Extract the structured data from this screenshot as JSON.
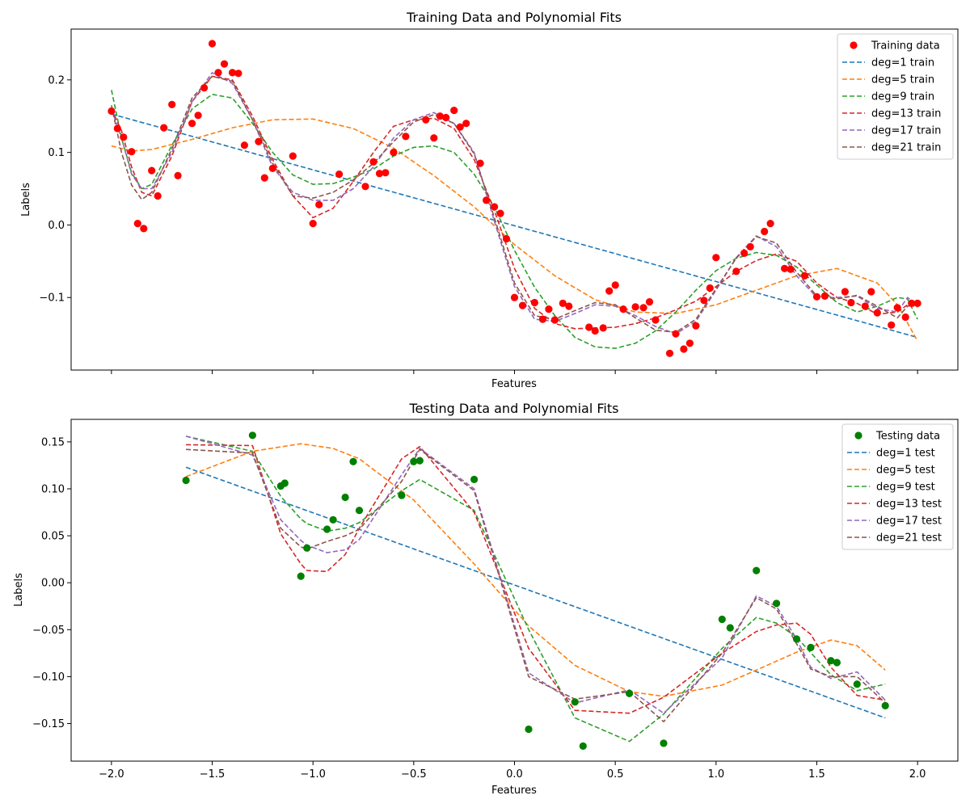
{
  "chart_data": [
    {
      "type": "scatter",
      "title": "Training Data and Polynomial Fits",
      "xlabel": "Features",
      "ylabel": "Labels",
      "xlim": [
        -2.2,
        2.2
      ],
      "ylim": [
        -0.2,
        0.27
      ],
      "x_ticks": [
        -2.0,
        -1.5,
        -1.0,
        -0.5,
        0.0,
        0.5,
        1.0,
        1.5,
        2.0
      ],
      "x_tick_labels_shown": false,
      "y_ticks": [
        -0.1,
        0.0,
        0.1,
        0.2
      ],
      "y_tick_labels": [
        "−0.1",
        "0.0",
        "0.1",
        "0.2"
      ],
      "grid": false,
      "legend_position": "top-right",
      "scatter": {
        "name": "Training data",
        "color": "#ff0000",
        "x": [
          -2.0,
          -1.97,
          -1.94,
          -1.9,
          -1.87,
          -1.84,
          -1.8,
          -1.77,
          -1.74,
          -1.7,
          -1.67,
          -1.6,
          -1.57,
          -1.54,
          -1.5,
          -1.47,
          -1.44,
          -1.4,
          -1.37,
          -1.34,
          -1.27,
          -1.24,
          -1.2,
          -1.1,
          -1.0,
          -0.97,
          -0.87,
          -0.74,
          -0.7,
          -0.67,
          -0.64,
          -0.6,
          -0.54,
          -0.44,
          -0.4,
          -0.37,
          -0.34,
          -0.3,
          -0.27,
          -0.24,
          -0.17,
          -0.14,
          -0.1,
          -0.07,
          -0.04,
          0.0,
          0.04,
          0.1,
          0.14,
          0.17,
          0.2,
          0.24,
          0.27,
          0.37,
          0.4,
          0.44,
          0.47,
          0.5,
          0.54,
          0.6,
          0.64,
          0.67,
          0.7,
          0.77,
          0.8,
          0.84,
          0.87,
          0.9,
          0.94,
          0.97,
          1.0,
          1.1,
          1.14,
          1.17,
          1.24,
          1.27,
          1.34,
          1.37,
          1.44,
          1.5,
          1.54,
          1.64,
          1.67,
          1.74,
          1.77,
          1.8,
          1.87,
          1.9,
          1.94,
          1.97,
          2.0
        ],
        "y": [
          0.157,
          0.133,
          0.121,
          0.101,
          0.002,
          -0.005,
          0.075,
          0.04,
          0.134,
          0.166,
          0.068,
          0.14,
          0.151,
          0.189,
          0.25,
          0.21,
          0.222,
          0.21,
          0.209,
          0.11,
          0.115,
          0.065,
          0.078,
          0.095,
          0.002,
          0.028,
          0.07,
          0.053,
          0.087,
          0.071,
          0.072,
          0.1,
          0.122,
          0.145,
          0.12,
          0.15,
          0.148,
          0.158,
          0.135,
          0.14,
          0.085,
          0.034,
          0.025,
          0.016,
          -0.019,
          -0.1,
          -0.111,
          -0.107,
          -0.13,
          -0.116,
          -0.131,
          -0.108,
          -0.112,
          -0.141,
          -0.146,
          -0.142,
          -0.091,
          -0.083,
          -0.116,
          -0.113,
          -0.114,
          -0.106,
          -0.131,
          -0.177,
          -0.15,
          -0.171,
          -0.163,
          -0.139,
          -0.104,
          -0.087,
          -0.045,
          -0.064,
          -0.039,
          -0.03,
          -0.009,
          0.002,
          -0.06,
          -0.061,
          -0.07,
          -0.099,
          -0.098,
          -0.092,
          -0.107,
          -0.112,
          -0.092,
          -0.121,
          -0.138,
          -0.114,
          -0.127,
          -0.108,
          -0.108
        ]
      },
      "series": [
        {
          "name": "deg=1 train",
          "color": "#1f77b4",
          "x": [
            -2.0,
            2.0
          ],
          "y": [
            0.153,
            -0.155
          ]
        },
        {
          "name": "deg=5 train",
          "color": "#ff7f0e",
          "x": [
            -2.0,
            -1.9,
            -1.8,
            -1.6,
            -1.4,
            -1.2,
            -1.0,
            -0.8,
            -0.6,
            -0.4,
            -0.2,
            0.0,
            0.2,
            0.4,
            0.6,
            0.8,
            1.0,
            1.2,
            1.4,
            1.6,
            1.8,
            1.9,
            2.0
          ],
          "y": [
            0.109,
            0.102,
            0.104,
            0.118,
            0.134,
            0.145,
            0.146,
            0.133,
            0.106,
            0.068,
            0.025,
            -0.027,
            -0.07,
            -0.103,
            -0.12,
            -0.122,
            -0.11,
            -0.09,
            -0.07,
            -0.06,
            -0.08,
            -0.11,
            -0.16
          ]
        },
        {
          "name": "deg=9 train",
          "color": "#2ca02c",
          "x": [
            -2.0,
            -1.95,
            -1.9,
            -1.85,
            -1.8,
            -1.7,
            -1.6,
            -1.5,
            -1.4,
            -1.3,
            -1.2,
            -1.1,
            -1.0,
            -0.9,
            -0.8,
            -0.7,
            -0.6,
            -0.5,
            -0.4,
            -0.3,
            -0.2,
            -0.1,
            0.0,
            0.1,
            0.2,
            0.3,
            0.4,
            0.5,
            0.6,
            0.7,
            0.8,
            0.9,
            1.0,
            1.1,
            1.2,
            1.3,
            1.4,
            1.5,
            1.6,
            1.7,
            1.8,
            1.9,
            1.95,
            2.0
          ],
          "y": [
            0.186,
            0.12,
            0.072,
            0.05,
            0.056,
            0.11,
            0.16,
            0.18,
            0.175,
            0.14,
            0.1,
            0.069,
            0.056,
            0.057,
            0.066,
            0.077,
            0.095,
            0.107,
            0.109,
            0.1,
            0.07,
            0.025,
            -0.035,
            -0.086,
            -0.125,
            -0.155,
            -0.168,
            -0.17,
            -0.163,
            -0.146,
            -0.12,
            -0.09,
            -0.063,
            -0.046,
            -0.038,
            -0.042,
            -0.058,
            -0.083,
            -0.107,
            -0.12,
            -0.112,
            -0.1,
            -0.102,
            -0.13
          ]
        },
        {
          "name": "deg=13 train",
          "color": "#d62728",
          "x": [
            -2.0,
            -1.95,
            -1.9,
            -1.85,
            -1.8,
            -1.7,
            -1.6,
            -1.5,
            -1.4,
            -1.3,
            -1.2,
            -1.1,
            -1.0,
            -0.9,
            -0.8,
            -0.7,
            -0.6,
            -0.5,
            -0.4,
            -0.3,
            -0.2,
            -0.1,
            0.0,
            0.1,
            0.2,
            0.3,
            0.4,
            0.5,
            0.6,
            0.7,
            0.8,
            0.9,
            1.0,
            1.1,
            1.2,
            1.3,
            1.4,
            1.5,
            1.6,
            1.7,
            1.8,
            1.9,
            1.95,
            2.0
          ],
          "y": [
            0.16,
            0.13,
            0.08,
            0.045,
            0.04,
            0.095,
            0.17,
            0.205,
            0.2,
            0.15,
            0.09,
            0.04,
            0.01,
            0.023,
            0.06,
            0.1,
            0.136,
            0.145,
            0.147,
            0.133,
            0.09,
            0.02,
            -0.06,
            -0.115,
            -0.136,
            -0.143,
            -0.142,
            -0.141,
            -0.136,
            -0.128,
            -0.117,
            -0.105,
            -0.085,
            -0.064,
            -0.049,
            -0.04,
            -0.05,
            -0.08,
            -0.1,
            -0.108,
            -0.123,
            -0.12,
            -0.11,
            -0.113
          ]
        },
        {
          "name": "deg=17 train",
          "color": "#9467bd",
          "x": [
            -2.0,
            -1.95,
            -1.9,
            -1.85,
            -1.8,
            -1.7,
            -1.6,
            -1.5,
            -1.4,
            -1.3,
            -1.2,
            -1.1,
            -1.0,
            -0.9,
            -0.8,
            -0.7,
            -0.6,
            -0.5,
            -0.4,
            -0.3,
            -0.2,
            -0.1,
            0.0,
            0.1,
            0.2,
            0.3,
            0.4,
            0.5,
            0.6,
            0.7,
            0.8,
            0.9,
            1.0,
            1.1,
            1.2,
            1.3,
            1.4,
            1.5,
            1.6,
            1.7,
            1.8,
            1.9,
            1.95,
            2.0
          ],
          "y": [
            0.16,
            0.12,
            0.07,
            0.05,
            0.05,
            0.1,
            0.17,
            0.21,
            0.195,
            0.145,
            0.08,
            0.045,
            0.034,
            0.034,
            0.05,
            0.08,
            0.12,
            0.145,
            0.155,
            0.14,
            0.1,
            0.005,
            -0.085,
            -0.13,
            -0.133,
            -0.122,
            -0.11,
            -0.112,
            -0.125,
            -0.14,
            -0.15,
            -0.133,
            -0.09,
            -0.045,
            -0.015,
            -0.03,
            -0.07,
            -0.1,
            -0.1,
            -0.098,
            -0.115,
            -0.12,
            -0.1,
            -0.11
          ]
        },
        {
          "name": "deg=21 train",
          "color": "#8c564b",
          "x": [
            -2.0,
            -1.95,
            -1.9,
            -1.85,
            -1.8,
            -1.7,
            -1.6,
            -1.5,
            -1.4,
            -1.3,
            -1.2,
            -1.1,
            -1.0,
            -0.9,
            -0.8,
            -0.7,
            -0.6,
            -0.5,
            -0.4,
            -0.3,
            -0.2,
            -0.1,
            0.0,
            0.1,
            0.2,
            0.3,
            0.4,
            0.5,
            0.6,
            0.7,
            0.8,
            0.9,
            1.0,
            1.1,
            1.2,
            1.3,
            1.4,
            1.5,
            1.6,
            1.7,
            1.8,
            1.9,
            1.95,
            2.0
          ],
          "y": [
            0.165,
            0.1,
            0.055,
            0.035,
            0.045,
            0.105,
            0.175,
            0.205,
            0.198,
            0.145,
            0.085,
            0.04,
            0.037,
            0.045,
            0.062,
            0.085,
            0.115,
            0.142,
            0.152,
            0.14,
            0.098,
            0.01,
            -0.08,
            -0.125,
            -0.13,
            -0.118,
            -0.107,
            -0.11,
            -0.128,
            -0.145,
            -0.148,
            -0.13,
            -0.088,
            -0.046,
            -0.016,
            -0.025,
            -0.065,
            -0.098,
            -0.102,
            -0.097,
            -0.112,
            -0.128,
            -0.112,
            -0.11
          ]
        }
      ]
    },
    {
      "type": "scatter",
      "title": "Testing Data and Polynomial Fits",
      "xlabel": "Features",
      "ylabel": "Labels",
      "xlim": [
        -2.2,
        2.2
      ],
      "ylim": [
        -0.19,
        0.174
      ],
      "x_ticks": [
        -2.0,
        -1.5,
        -1.0,
        -0.5,
        0.0,
        0.5,
        1.0,
        1.5,
        2.0
      ],
      "x_tick_labels": [
        "−2.0",
        "−1.5",
        "−1.0",
        "−0.5",
        "0.0",
        "0.5",
        "1.0",
        "1.5",
        "2.0"
      ],
      "y_ticks": [
        -0.15,
        -0.1,
        -0.05,
        0.0,
        0.05,
        0.1,
        0.15
      ],
      "y_tick_labels": [
        "−0.15",
        "−0.10",
        "−0.05",
        "0.00",
        "0.05",
        "0.10",
        "0.15"
      ],
      "grid": false,
      "legend_position": "top-right",
      "scatter": {
        "name": "Testing data",
        "color": "#008000",
        "x": [
          -1.63,
          -1.3,
          -1.16,
          -1.14,
          -1.06,
          -1.03,
          -0.9,
          -0.93,
          -0.84,
          -0.8,
          -0.77,
          -0.56,
          -0.5,
          -0.47,
          -0.2,
          0.07,
          0.3,
          0.34,
          0.57,
          0.74,
          1.03,
          1.07,
          1.2,
          1.3,
          1.4,
          1.47,
          1.57,
          1.6,
          1.7,
          1.84
        ],
        "y": [
          0.109,
          0.157,
          0.103,
          0.106,
          0.007,
          0.037,
          0.067,
          0.057,
          0.091,
          0.129,
          0.077,
          0.093,
          0.129,
          0.13,
          0.11,
          -0.156,
          -0.127,
          -0.174,
          -0.118,
          -0.171,
          -0.039,
          -0.048,
          0.013,
          -0.022,
          -0.06,
          -0.069,
          -0.083,
          -0.085,
          -0.108,
          -0.131
        ]
      },
      "series": [
        {
          "name": "deg=1 test",
          "color": "#1f77b4",
          "x": [
            -1.63,
            1.84
          ],
          "y": [
            0.123,
            -0.144
          ]
        },
        {
          "name": "deg=5 test",
          "color": "#ff7f0e",
          "x": [
            -1.63,
            -1.3,
            -1.06,
            -0.9,
            -0.77,
            -0.5,
            -0.2,
            0.07,
            0.3,
            0.57,
            0.74,
            1.03,
            1.2,
            1.4,
            1.57,
            1.7,
            1.84
          ],
          "y": [
            0.113,
            0.14,
            0.148,
            0.143,
            0.132,
            0.088,
            0.02,
            -0.046,
            -0.088,
            -0.116,
            -0.121,
            -0.109,
            -0.093,
            -0.074,
            -0.061,
            -0.067,
            -0.093
          ]
        },
        {
          "name": "deg=9 test",
          "color": "#2ca02c",
          "x": [
            -1.63,
            -1.3,
            -1.16,
            -1.06,
            -1.03,
            -0.93,
            -0.84,
            -0.77,
            -0.56,
            -0.47,
            -0.2,
            0.07,
            0.3,
            0.57,
            0.74,
            1.03,
            1.2,
            1.3,
            1.4,
            1.57,
            1.7,
            1.84
          ],
          "y": [
            0.156,
            0.14,
            0.092,
            0.068,
            0.063,
            0.055,
            0.058,
            0.064,
            0.098,
            0.11,
            0.077,
            -0.05,
            -0.144,
            -0.169,
            -0.14,
            -0.07,
            -0.037,
            -0.043,
            -0.058,
            -0.098,
            -0.115,
            -0.108
          ]
        },
        {
          "name": "deg=13 test",
          "color": "#d62728",
          "x": [
            -1.63,
            -1.3,
            -1.16,
            -1.06,
            -1.03,
            -0.93,
            -0.84,
            -0.77,
            -0.56,
            -0.47,
            -0.2,
            0.07,
            0.3,
            0.57,
            0.74,
            1.03,
            1.2,
            1.3,
            1.4,
            1.47,
            1.57,
            1.7,
            1.84
          ],
          "y": [
            0.147,
            0.146,
            0.052,
            0.02,
            0.013,
            0.012,
            0.03,
            0.058,
            0.132,
            0.145,
            0.075,
            -0.07,
            -0.136,
            -0.139,
            -0.122,
            -0.075,
            -0.052,
            -0.045,
            -0.043,
            -0.055,
            -0.09,
            -0.12,
            -0.125
          ]
        },
        {
          "name": "deg=17 test",
          "color": "#9467bd",
          "x": [
            -1.63,
            -1.3,
            -1.16,
            -1.06,
            -1.03,
            -0.93,
            -0.84,
            -0.77,
            -0.56,
            -0.47,
            -0.2,
            0.07,
            0.3,
            0.57,
            0.74,
            1.03,
            1.2,
            1.3,
            1.4,
            1.47,
            1.57,
            1.7,
            1.84
          ],
          "y": [
            0.156,
            0.136,
            0.067,
            0.045,
            0.04,
            0.032,
            0.035,
            0.046,
            0.115,
            0.143,
            0.1,
            -0.096,
            -0.128,
            -0.114,
            -0.139,
            -0.08,
            -0.014,
            -0.025,
            -0.06,
            -0.09,
            -0.102,
            -0.095,
            -0.125
          ]
        },
        {
          "name": "deg=21 test",
          "color": "#8c564b",
          "x": [
            -1.63,
            -1.3,
            -1.16,
            -1.06,
            -1.03,
            -0.93,
            -0.84,
            -0.77,
            -0.56,
            -0.47,
            -0.2,
            0.07,
            0.3,
            0.57,
            0.74,
            1.03,
            1.2,
            1.3,
            1.4,
            1.47,
            1.57,
            1.7,
            1.84
          ],
          "y": [
            0.142,
            0.138,
            0.058,
            0.038,
            0.036,
            0.044,
            0.05,
            0.057,
            0.108,
            0.142,
            0.098,
            -0.1,
            -0.124,
            -0.116,
            -0.148,
            -0.075,
            -0.016,
            -0.028,
            -0.065,
            -0.092,
            -0.1,
            -0.1,
            -0.128
          ]
        }
      ]
    }
  ]
}
